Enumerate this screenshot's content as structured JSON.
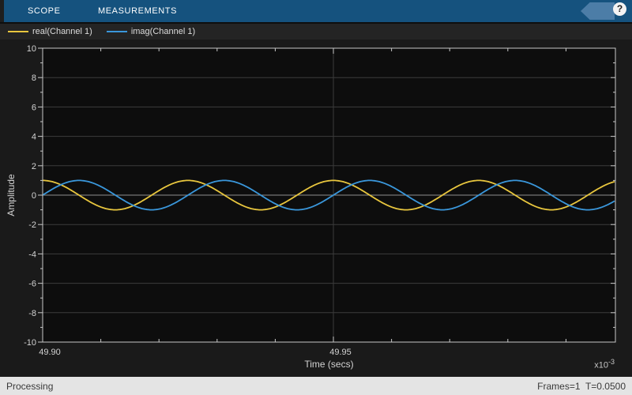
{
  "toolbar": {
    "tabs": [
      {
        "label": "SCOPE"
      },
      {
        "label": "MEASUREMENTS"
      }
    ],
    "help_label": "?"
  },
  "legend": {
    "items": [
      {
        "label": "real(Channel 1)",
        "color": "#E8C63E"
      },
      {
        "label": "imag(Channel 1)",
        "color": "#3A97DB"
      }
    ]
  },
  "chart_data": {
    "type": "line",
    "title": "",
    "xlabel": "Time (secs)",
    "ylabel": "Amplitude",
    "x_scale_label": {
      "prefix": "x10",
      "exponent": "-3"
    },
    "xlim": [
      49.9,
      49.9985
    ],
    "ylim": [
      -10,
      10
    ],
    "x_major_ticks": [
      49.9,
      49.95
    ],
    "x_tick_labels": [
      "49.90",
      "49.95"
    ],
    "x_minor_tick_step": 0.01,
    "y_major_tick_step": 2,
    "y_minor_tick_step": 1,
    "y_tick_labels": [
      "-10",
      "-8",
      "-6",
      "-4",
      "-2",
      "0",
      "2",
      "4",
      "6",
      "8",
      "10"
    ],
    "grid": true,
    "legend_position": "top-strip",
    "series": [
      {
        "name": "real(Channel 1)",
        "color": "#E8C63E",
        "waveform": "cos",
        "amplitude": 1,
        "period": 0.025,
        "phase_zero_at": 49.9
      },
      {
        "name": "imag(Channel 1)",
        "color": "#3A97DB",
        "waveform": "sin",
        "amplitude": 1,
        "period": 0.025,
        "phase_zero_at": 49.9
      }
    ],
    "colors": {
      "plot_bg": "#0D0D0D",
      "grid": "#3C3C3C",
      "zero_line": "#8E8E8E",
      "axis": "#C8C8C8",
      "tick_label": "#D2D2D2"
    }
  },
  "status_bar": {
    "left": "Processing",
    "right": "Frames=1  T=0.0500"
  }
}
